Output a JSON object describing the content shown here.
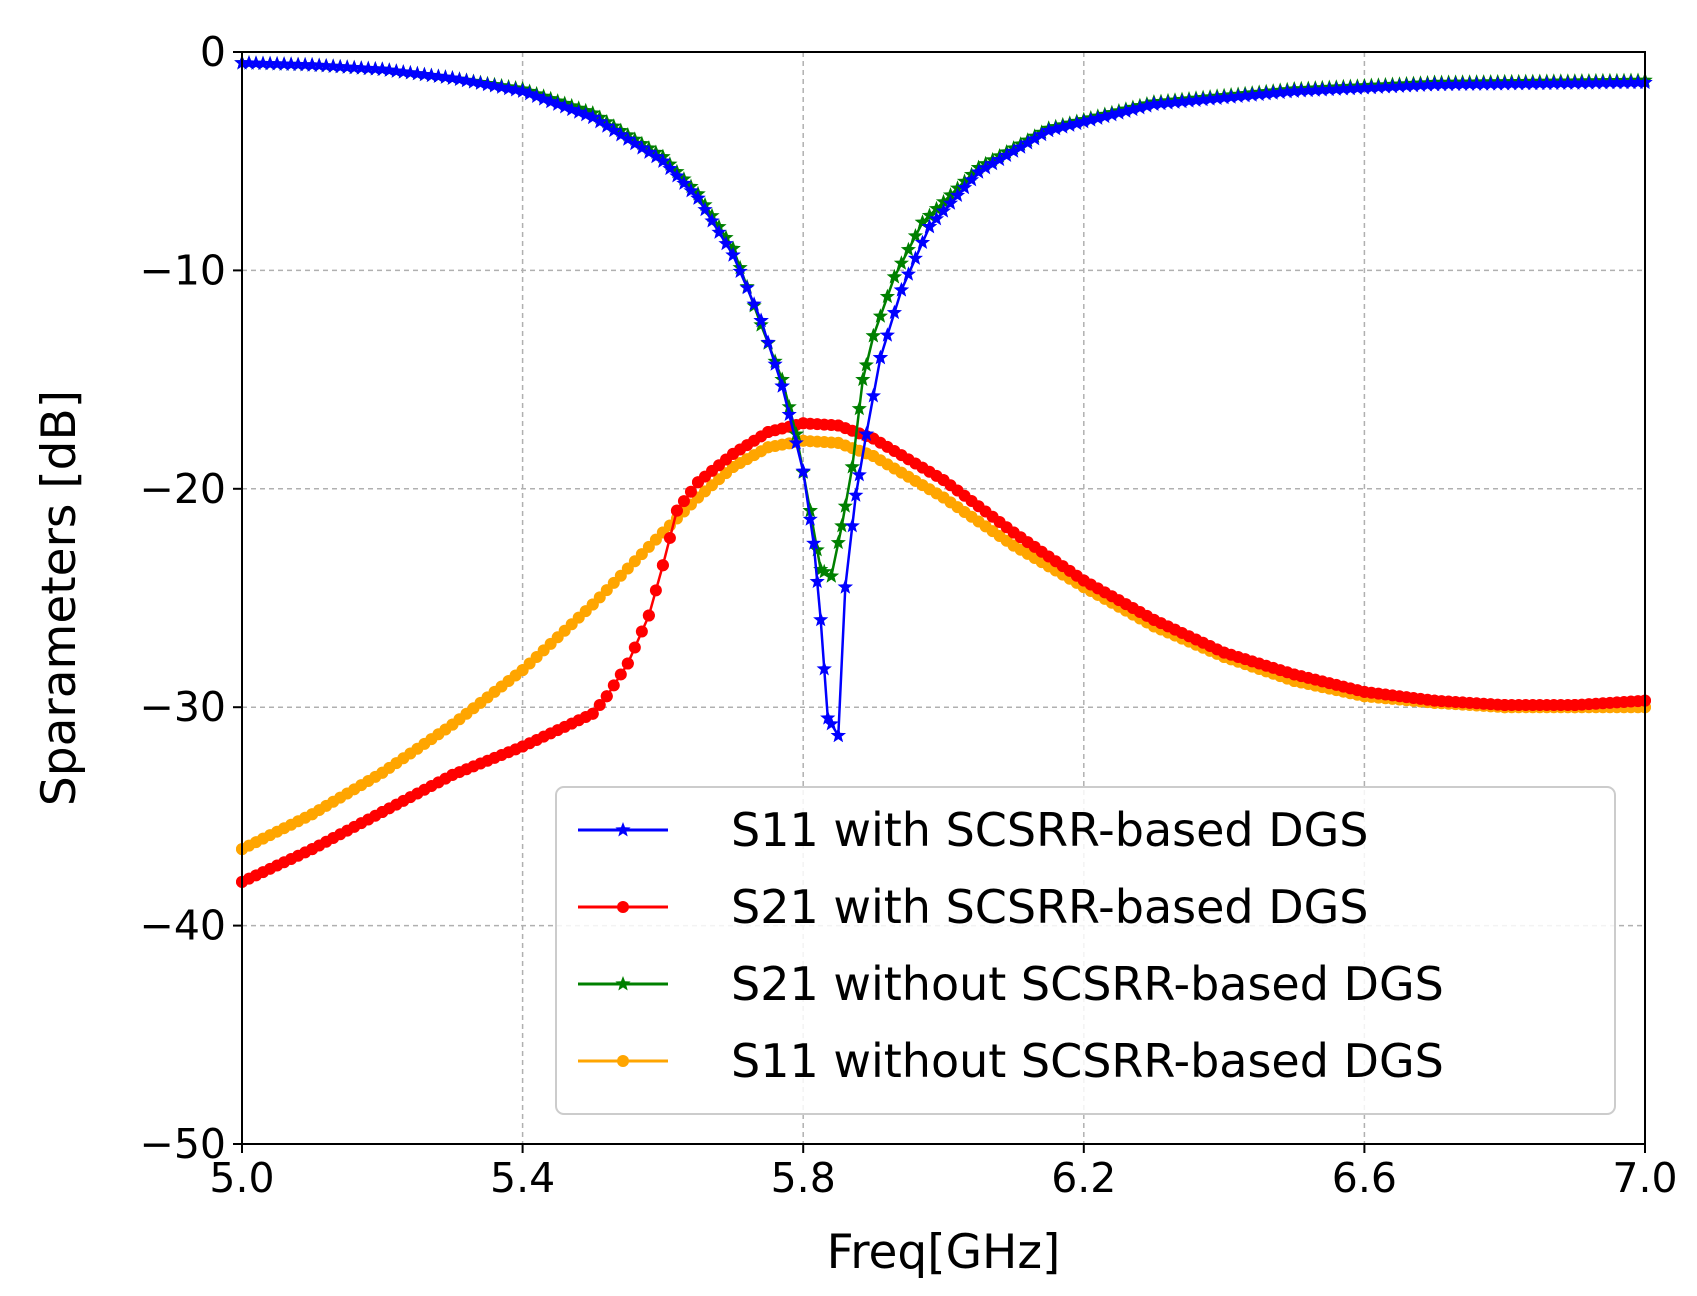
{
  "chart_data": {
    "type": "line",
    "xlabel": "Freq[GHz]",
    "ylabel": "Sparameters [dB]",
    "xlim": [
      5.0,
      7.0
    ],
    "ylim": [
      -50,
      0
    ],
    "x_ticks": [
      "5.0",
      "5.4",
      "5.8",
      "6.2",
      "6.6",
      "7.0"
    ],
    "y_ticks": [
      "0",
      "−10",
      "−20",
      "−30",
      "−40",
      "−50"
    ],
    "grid": true,
    "legend_position": "lower-right",
    "series": [
      {
        "name": "S11 with SCSRR-based DGS",
        "color": "#0000ff",
        "marker": "star",
        "points": [
          [
            5.0,
            -0.5
          ],
          [
            5.1,
            -0.6
          ],
          [
            5.2,
            -0.8
          ],
          [
            5.3,
            -1.2
          ],
          [
            5.4,
            -1.8
          ],
          [
            5.5,
            -3.0
          ],
          [
            5.6,
            -5.0
          ],
          [
            5.65,
            -6.7
          ],
          [
            5.7,
            -9.3
          ],
          [
            5.74,
            -12.3
          ],
          [
            5.77,
            -15.3
          ],
          [
            5.8,
            -19.2
          ],
          [
            5.815,
            -22.5
          ],
          [
            5.825,
            -26.0
          ],
          [
            5.835,
            -30.5
          ],
          [
            5.85,
            -31.3
          ],
          [
            5.86,
            -24.5
          ],
          [
            5.875,
            -20.3
          ],
          [
            5.89,
            -17.5
          ],
          [
            5.91,
            -14.0
          ],
          [
            5.94,
            -10.9
          ],
          [
            5.98,
            -8.0
          ],
          [
            6.05,
            -5.5
          ],
          [
            6.15,
            -3.6
          ],
          [
            6.3,
            -2.4
          ],
          [
            6.5,
            -1.8
          ],
          [
            6.7,
            -1.5
          ],
          [
            7.0,
            -1.4
          ]
        ]
      },
      {
        "name": "S21 with SCSRR-based DGS",
        "color": "#ff0000",
        "marker": "circle",
        "points": [
          [
            5.0,
            -38.0
          ],
          [
            5.1,
            -36.5
          ],
          [
            5.2,
            -34.8
          ],
          [
            5.3,
            -33.1
          ],
          [
            5.4,
            -31.8
          ],
          [
            5.5,
            -30.3
          ],
          [
            5.52,
            -29.5
          ],
          [
            5.55,
            -28.0
          ],
          [
            5.58,
            -25.8
          ],
          [
            5.6,
            -23.5
          ],
          [
            5.62,
            -21.0
          ],
          [
            5.65,
            -19.7
          ],
          [
            5.7,
            -18.4
          ],
          [
            5.75,
            -17.4
          ],
          [
            5.8,
            -17.0
          ],
          [
            5.85,
            -17.1
          ],
          [
            5.9,
            -17.7
          ],
          [
            6.0,
            -19.6
          ],
          [
            6.1,
            -22.0
          ],
          [
            6.2,
            -24.2
          ],
          [
            6.3,
            -26.0
          ],
          [
            6.4,
            -27.5
          ],
          [
            6.5,
            -28.5
          ],
          [
            6.6,
            -29.3
          ],
          [
            6.7,
            -29.7
          ],
          [
            6.8,
            -29.9
          ],
          [
            6.9,
            -29.9
          ],
          [
            7.0,
            -29.7
          ]
        ]
      },
      {
        "name": "S21 without SCSRR-based DGS",
        "color": "#008000",
        "marker": "star",
        "points": [
          [
            5.0,
            -0.5
          ],
          [
            5.1,
            -0.6
          ],
          [
            5.2,
            -0.8
          ],
          [
            5.3,
            -1.2
          ],
          [
            5.4,
            -1.7
          ],
          [
            5.5,
            -2.8
          ],
          [
            5.6,
            -4.8
          ],
          [
            5.65,
            -6.5
          ],
          [
            5.7,
            -9.0
          ],
          [
            5.74,
            -12.5
          ],
          [
            5.77,
            -15.0
          ],
          [
            5.79,
            -17.5
          ],
          [
            5.81,
            -21.0
          ],
          [
            5.825,
            -23.7
          ],
          [
            5.84,
            -24.0
          ],
          [
            5.855,
            -21.7
          ],
          [
            5.87,
            -19.0
          ],
          [
            5.885,
            -15.0
          ],
          [
            5.9,
            -13.0
          ],
          [
            5.93,
            -10.3
          ],
          [
            5.97,
            -7.8
          ],
          [
            6.05,
            -5.3
          ],
          [
            6.15,
            -3.5
          ],
          [
            6.3,
            -2.3
          ],
          [
            6.5,
            -1.7
          ],
          [
            6.7,
            -1.4
          ],
          [
            7.0,
            -1.3
          ]
        ]
      },
      {
        "name": "S11 without SCSRR-based DGS",
        "color": "#ffa500",
        "marker": "circle",
        "points": [
          [
            5.0,
            -36.5
          ],
          [
            5.1,
            -34.9
          ],
          [
            5.2,
            -33.0
          ],
          [
            5.3,
            -30.8
          ],
          [
            5.4,
            -28.3
          ],
          [
            5.5,
            -25.3
          ],
          [
            5.6,
            -22.0
          ],
          [
            5.65,
            -20.4
          ],
          [
            5.7,
            -19.0
          ],
          [
            5.75,
            -18.1
          ],
          [
            5.8,
            -17.8
          ],
          [
            5.85,
            -17.9
          ],
          [
            5.9,
            -18.5
          ],
          [
            6.0,
            -20.4
          ],
          [
            6.1,
            -22.6
          ],
          [
            6.2,
            -24.5
          ],
          [
            6.3,
            -26.3
          ],
          [
            6.4,
            -27.7
          ],
          [
            6.5,
            -28.8
          ],
          [
            6.6,
            -29.5
          ],
          [
            6.7,
            -29.8
          ],
          [
            6.8,
            -30.0
          ],
          [
            6.9,
            -30.0
          ],
          [
            7.0,
            -30.0
          ]
        ]
      }
    ]
  }
}
